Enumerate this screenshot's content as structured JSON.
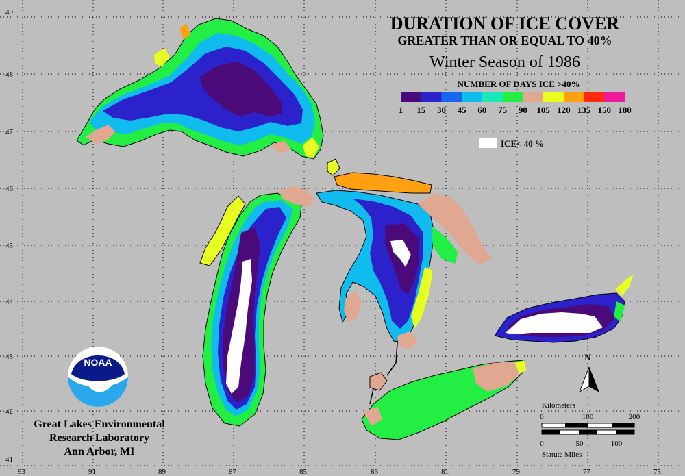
{
  "title": "DURATION OF ICE COVER",
  "subtitle": "GREATER THAN OR EQUAL TO 40%",
  "season": "Winter Season of 1986",
  "legend": {
    "heading": "NUMBER OF DAYS ICE >40%",
    "ticks": [
      "1",
      "15",
      "30",
      "45",
      "60",
      "75",
      "90",
      "105",
      "120",
      "135",
      "150",
      "180"
    ],
    "colors": [
      "#4b0a7a",
      "#2b22cc",
      "#1866ee",
      "#10bbee",
      "#1ae8b8",
      "#22ee44",
      "#e0a890",
      "#e8ff22",
      "#ffa010",
      "#ff2a10",
      "#ee1a9a"
    ],
    "white_box_label": "ICE< 40 %"
  },
  "latitudes": [
    "49",
    "48",
    "47",
    "46",
    "45",
    "44",
    "43",
    "42",
    "41"
  ],
  "longitudes": [
    "93",
    "91",
    "89",
    "87",
    "85",
    "83",
    "81",
    "79",
    "77",
    "75"
  ],
  "organization": {
    "logo_text": "NOAA",
    "line1": "Great Lakes Environmental",
    "line2": "Research Laboratory",
    "line3": "Ann Arbor, MI"
  },
  "north_label": "N",
  "scale": {
    "km_label": "Kilometers",
    "km_ticks": [
      "0",
      "100",
      "200"
    ],
    "mi_ticks": [
      "0",
      "50",
      "100"
    ],
    "mi_label": "Statute Miles"
  }
}
